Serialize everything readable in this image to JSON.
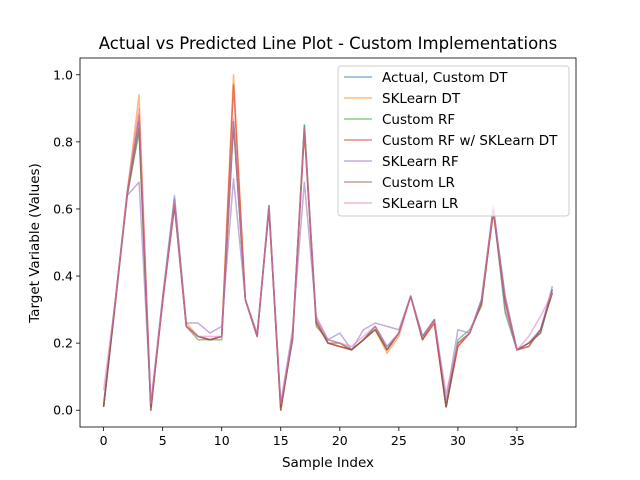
{
  "chart_data": {
    "type": "line",
    "title": "Actual vs Predicted Line Plot - Custom Implementations",
    "xlabel": "Sample Index",
    "ylabel": "Target Variable (Values)",
    "xlim": [
      -2,
      40
    ],
    "ylim": [
      -0.05,
      1.05
    ],
    "x_ticks": [
      0,
      5,
      10,
      15,
      20,
      25,
      30,
      35
    ],
    "y_ticks": [
      0.0,
      0.2,
      0.4,
      0.6,
      0.8,
      1.0
    ],
    "legend_position": "top-right",
    "grid": false,
    "x": [
      0,
      1,
      2,
      3,
      4,
      5,
      6,
      7,
      8,
      9,
      10,
      11,
      12,
      13,
      14,
      15,
      16,
      17,
      18,
      19,
      20,
      21,
      22,
      23,
      24,
      25,
      26,
      27,
      28,
      29,
      30,
      31,
      32,
      33,
      34,
      35,
      36,
      37,
      38
    ],
    "series": [
      {
        "name": "Actual, Custom DT",
        "color": "#1f77b4",
        "values": [
          0.01,
          0.33,
          0.65,
          0.86,
          0.0,
          0.33,
          0.63,
          0.25,
          0.22,
          0.21,
          0.22,
          0.85,
          0.33,
          0.22,
          0.61,
          0.0,
          0.22,
          0.85,
          0.27,
          0.2,
          0.19,
          0.18,
          0.21,
          0.25,
          0.19,
          0.23,
          0.34,
          0.22,
          0.27,
          0.01,
          0.2,
          0.23,
          0.33,
          0.6,
          0.34,
          0.18,
          0.2,
          0.23,
          0.36
        ]
      },
      {
        "name": "SKLearn DT",
        "color": "#ff7f0e",
        "values": [
          0.01,
          0.33,
          0.65,
          0.94,
          0.0,
          0.33,
          0.62,
          0.26,
          0.22,
          0.21,
          0.22,
          1.0,
          0.33,
          0.22,
          0.6,
          0.0,
          0.22,
          0.83,
          0.27,
          0.2,
          0.19,
          0.18,
          0.21,
          0.24,
          0.17,
          0.22,
          0.34,
          0.21,
          0.26,
          0.01,
          0.19,
          0.23,
          0.32,
          0.59,
          0.33,
          0.18,
          0.19,
          0.24,
          0.35
        ]
      },
      {
        "name": "Custom RF",
        "color": "#2ca02c",
        "values": [
          0.01,
          0.32,
          0.64,
          0.83,
          0.01,
          0.33,
          0.61,
          0.25,
          0.21,
          0.21,
          0.21,
          0.86,
          0.33,
          0.22,
          0.61,
          0.01,
          0.21,
          0.85,
          0.25,
          0.21,
          0.2,
          0.18,
          0.21,
          0.24,
          0.18,
          0.23,
          0.34,
          0.22,
          0.27,
          0.01,
          0.21,
          0.24,
          0.31,
          0.6,
          0.29,
          0.18,
          0.2,
          0.24,
          0.35
        ]
      },
      {
        "name": "Custom RF w/ SKLearn DT",
        "color": "#d62728",
        "values": [
          0.01,
          0.32,
          0.65,
          0.88,
          0.01,
          0.32,
          0.61,
          0.25,
          0.22,
          0.21,
          0.22,
          0.97,
          0.33,
          0.22,
          0.6,
          0.01,
          0.21,
          0.83,
          0.26,
          0.2,
          0.19,
          0.18,
          0.21,
          0.24,
          0.18,
          0.23,
          0.34,
          0.21,
          0.26,
          0.01,
          0.19,
          0.23,
          0.32,
          0.59,
          0.32,
          0.18,
          0.19,
          0.24,
          0.35
        ]
      },
      {
        "name": "SKLearn RF",
        "color": "#9467bd",
        "values": [
          0.02,
          0.33,
          0.64,
          0.68,
          0.02,
          0.34,
          0.64,
          0.26,
          0.26,
          0.23,
          0.25,
          0.69,
          0.33,
          0.23,
          0.6,
          0.02,
          0.24,
          0.68,
          0.28,
          0.21,
          0.23,
          0.18,
          0.24,
          0.26,
          0.25,
          0.24,
          0.34,
          0.22,
          0.27,
          0.03,
          0.24,
          0.23,
          0.33,
          0.61,
          0.3,
          0.18,
          0.2,
          0.24,
          0.37
        ]
      },
      {
        "name": "Custom LR",
        "color": "#8c564b",
        "values": [
          0.01,
          0.33,
          0.64,
          0.84,
          0.0,
          0.33,
          0.61,
          0.25,
          0.22,
          0.21,
          0.22,
          0.86,
          0.33,
          0.22,
          0.6,
          0.0,
          0.22,
          0.84,
          0.26,
          0.2,
          0.2,
          0.18,
          0.21,
          0.25,
          0.18,
          0.23,
          0.34,
          0.21,
          0.27,
          0.01,
          0.2,
          0.23,
          0.32,
          0.6,
          0.33,
          0.18,
          0.2,
          0.23,
          0.36
        ]
      },
      {
        "name": "SKLearn LR",
        "color": "#e377c2",
        "values": [
          0.06,
          0.33,
          0.65,
          0.9,
          0.02,
          0.33,
          0.62,
          0.25,
          0.22,
          0.22,
          0.22,
          0.87,
          0.33,
          0.22,
          0.61,
          0.02,
          0.22,
          0.84,
          0.27,
          0.21,
          0.2,
          0.19,
          0.22,
          0.25,
          0.19,
          0.23,
          0.34,
          0.22,
          0.27,
          0.05,
          0.2,
          0.23,
          0.33,
          0.6,
          0.34,
          0.18,
          0.22,
          0.28,
          0.35
        ]
      }
    ]
  }
}
